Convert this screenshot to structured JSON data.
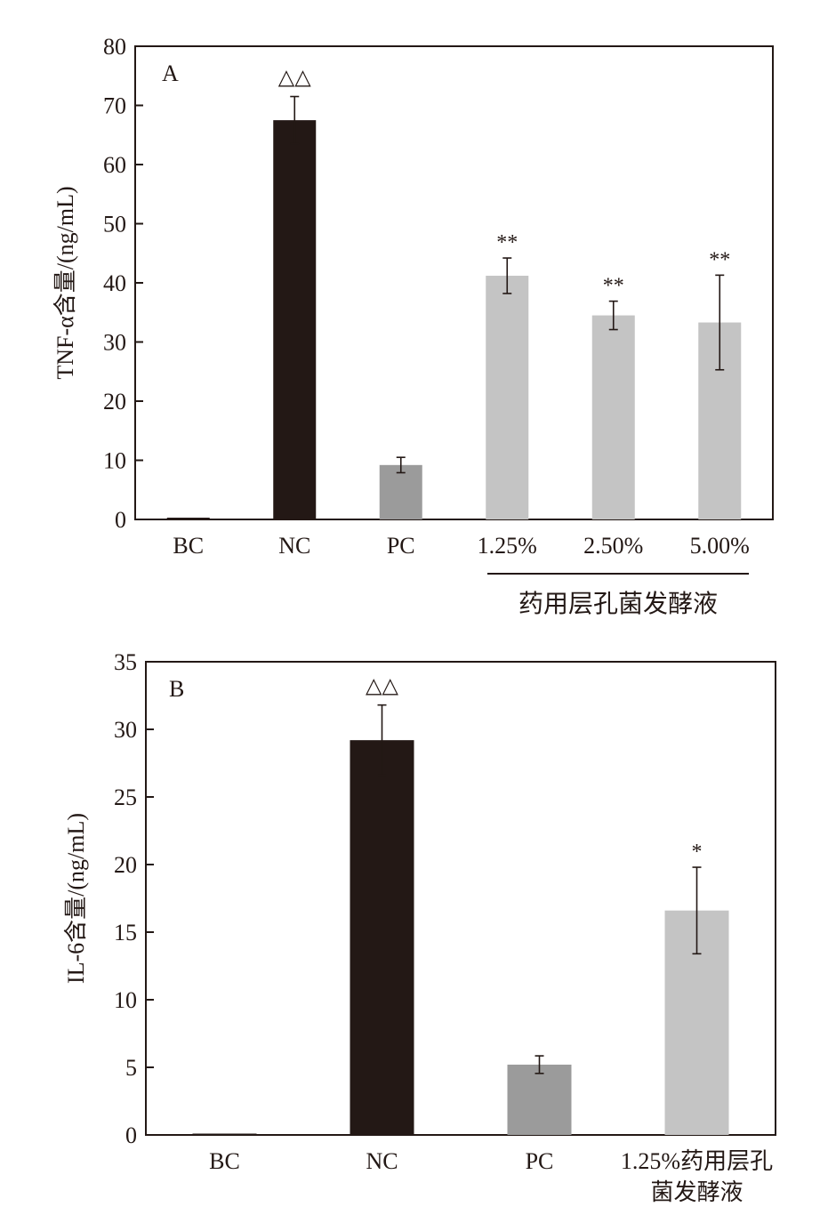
{
  "colors": {
    "ink": "#231815",
    "bar_dark": "#231815",
    "bar_mid": "#9b9b9b",
    "bar_light": "#c4c4c4"
  },
  "chart_data": [
    {
      "type": "bar",
      "panel": "A",
      "ylabel": "TNF-α含量/(ng/mL)",
      "ylim": [
        0,
        80
      ],
      "yticks": [
        "0",
        "10",
        "20",
        "30",
        "40",
        "50",
        "60",
        "70",
        "80"
      ],
      "categories": [
        "BC",
        "NC",
        "PC",
        "1.25%",
        "2.50%",
        "5.00%"
      ],
      "values": [
        0.3,
        67.5,
        9.2,
        41.2,
        34.5,
        33.3
      ],
      "errors": [
        0,
        4.0,
        1.3,
        3.0,
        2.4,
        8.0
      ],
      "significance": [
        "",
        "△△",
        "",
        "**",
        "**",
        "**"
      ],
      "bar_colors": [
        "#231815",
        "#231815",
        "#9b9b9b",
        "#c4c4c4",
        "#c4c4c4",
        "#c4c4c4"
      ],
      "group_label": "药用层孔菌发酵液",
      "grid": false
    },
    {
      "type": "bar",
      "panel": "B",
      "ylabel": "IL-6含量/(ng/mL)",
      "ylim": [
        0,
        35
      ],
      "yticks": [
        "0",
        "5",
        "10",
        "15",
        "20",
        "25",
        "30",
        "35"
      ],
      "categories": [
        "BC",
        "NC",
        "PC",
        "1.25%药用层孔\n菌发酵液"
      ],
      "category_lines": [
        [
          "BC"
        ],
        [
          "NC"
        ],
        [
          "PC"
        ],
        [
          "1.25%药用层孔",
          "菌发酵液"
        ]
      ],
      "values": [
        0.05,
        29.2,
        5.2,
        16.6
      ],
      "errors": [
        0,
        2.6,
        0.65,
        3.2
      ],
      "significance": [
        "",
        "△△",
        "",
        "*"
      ],
      "bar_colors": [
        "#231815",
        "#231815",
        "#9b9b9b",
        "#c4c4c4"
      ],
      "grid": false
    }
  ]
}
